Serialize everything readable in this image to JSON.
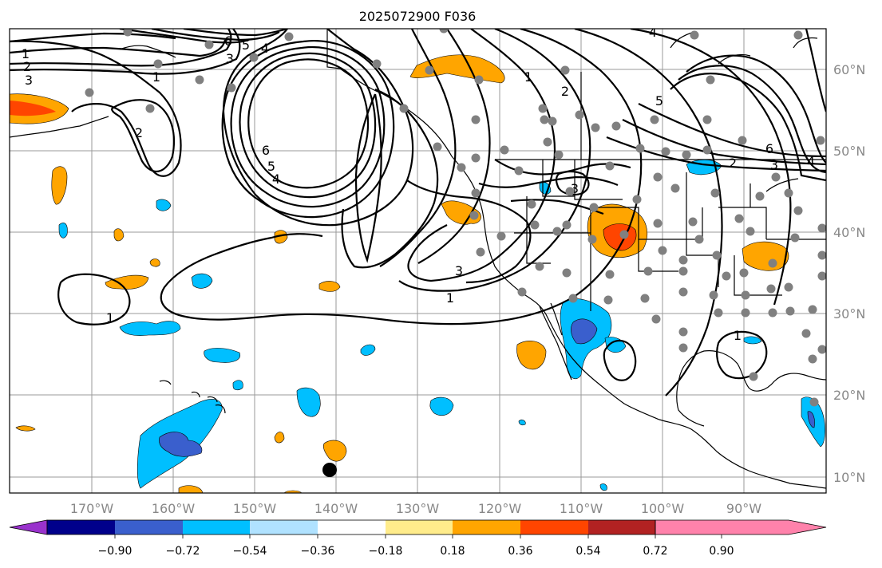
{
  "title": "2025072900 F036",
  "longitude_labels": [
    "170°W",
    "160°W",
    "150°W",
    "140°W",
    "130°W",
    "120°W",
    "110°W",
    "100°W",
    "90°W"
  ],
  "latitude_labels": [
    "60°N",
    "50°N",
    "40°N",
    "30°N",
    "20°N",
    "10°N"
  ],
  "colorbar": {
    "tick_labels": [
      "−0.90",
      "−0.72",
      "−0.54",
      "−0.36",
      "−0.18",
      "0.18",
      "0.36",
      "0.54",
      "0.72",
      "0.90"
    ],
    "colors": [
      "#9932cc",
      "#00008b",
      "#3a5fcd",
      "#00bfff",
      "#b0e2ff",
      "#ffffff",
      "#ffec8b",
      "#ffa500",
      "#ff4500",
      "#b22222",
      "#ff82ab"
    ]
  },
  "contour_labels": [
    {
      "id": "c1a",
      "text": "1"
    },
    {
      "id": "c2a",
      "text": "2"
    },
    {
      "id": "c3a",
      "text": "3"
    },
    {
      "id": "c6a",
      "text": "6"
    },
    {
      "id": "c5a",
      "text": "5"
    },
    {
      "id": "c4a",
      "text": "4"
    },
    {
      "id": "c3b",
      "text": "3"
    },
    {
      "id": "c1b",
      "text": "1"
    },
    {
      "id": "c2b",
      "text": "2"
    },
    {
      "id": "c6b",
      "text": "6"
    },
    {
      "id": "c5b",
      "text": "5"
    },
    {
      "id": "c4b",
      "text": "4"
    },
    {
      "id": "c1c",
      "text": "1"
    },
    {
      "id": "c2c",
      "text": "2"
    },
    {
      "id": "c3c",
      "text": "3"
    },
    {
      "id": "c3d",
      "text": "3"
    },
    {
      "id": "c1d",
      "text": "1"
    },
    {
      "id": "c1e",
      "text": "1"
    },
    {
      "id": "c4c",
      "text": "4"
    },
    {
      "id": "c5c",
      "text": "5"
    },
    {
      "id": "c6c",
      "text": "6"
    },
    {
      "id": "c3e",
      "text": "3"
    },
    {
      "id": "c2d",
      "text": "2"
    },
    {
      "id": "c4d",
      "text": "4"
    },
    {
      "id": "c1f",
      "text": "1"
    }
  ]
}
